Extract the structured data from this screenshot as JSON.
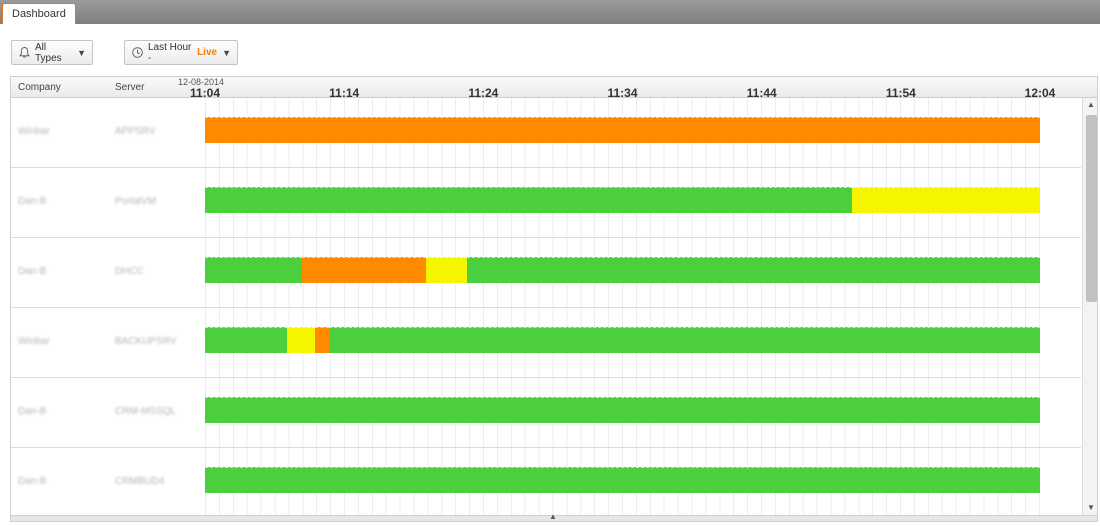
{
  "tabs": [
    {
      "label": "Dashboard"
    }
  ],
  "filters": {
    "types_label": "All Types",
    "time_label": "Last Hour - ",
    "live_label": "Live",
    "caret": "▼"
  },
  "colors": {
    "ok": "#4bcf3c",
    "warning": "#f5f500",
    "alert": "#ff8a00",
    "accent": "#ef7d16"
  },
  "grid": {
    "headers": {
      "company": "Company",
      "server": "Server"
    },
    "date": "12-08-2014",
    "time_ticks": [
      "11:04",
      "11:14",
      "11:24",
      "11:34",
      "11:44",
      "11:54",
      "12:04"
    ],
    "timeline_range_minutes": 60,
    "rows": [
      {
        "company": "Winbar",
        "server": "APPSRV",
        "segments": [
          {
            "status": "alert",
            "start": 0,
            "end": 60
          }
        ]
      },
      {
        "company": "Dan-B",
        "server": "PortalVM",
        "segments": [
          {
            "status": "ok",
            "start": 0,
            "end": 46.5
          },
          {
            "status": "warning",
            "start": 46.5,
            "end": 60
          }
        ]
      },
      {
        "company": "Dan-B",
        "server": "DHCC",
        "segments": [
          {
            "status": "ok",
            "start": 0,
            "end": 7
          },
          {
            "status": "alert",
            "start": 7,
            "end": 15.9
          },
          {
            "status": "warning",
            "start": 15.9,
            "end": 18.8
          },
          {
            "status": "ok",
            "start": 18.8,
            "end": 60
          }
        ]
      },
      {
        "company": "Winbar",
        "server": "BACKUPSRV",
        "segments": [
          {
            "status": "ok",
            "start": 0,
            "end": 5.9
          },
          {
            "status": "warning",
            "start": 5.9,
            "end": 7.9
          },
          {
            "status": "alert",
            "start": 7.9,
            "end": 8.9
          },
          {
            "status": "ok",
            "start": 8.9,
            "end": 60
          }
        ]
      },
      {
        "company": "Dan-B",
        "server": "CRM-MSSQL",
        "segments": [
          {
            "status": "ok",
            "start": 0,
            "end": 60
          }
        ]
      },
      {
        "company": "Dan-B",
        "server": "CRMBUD4",
        "segments": [
          {
            "status": "ok",
            "start": 0,
            "end": 60
          }
        ]
      }
    ]
  },
  "scrollbar": {
    "up": "▲",
    "down": "▼",
    "collapse": "▲"
  }
}
